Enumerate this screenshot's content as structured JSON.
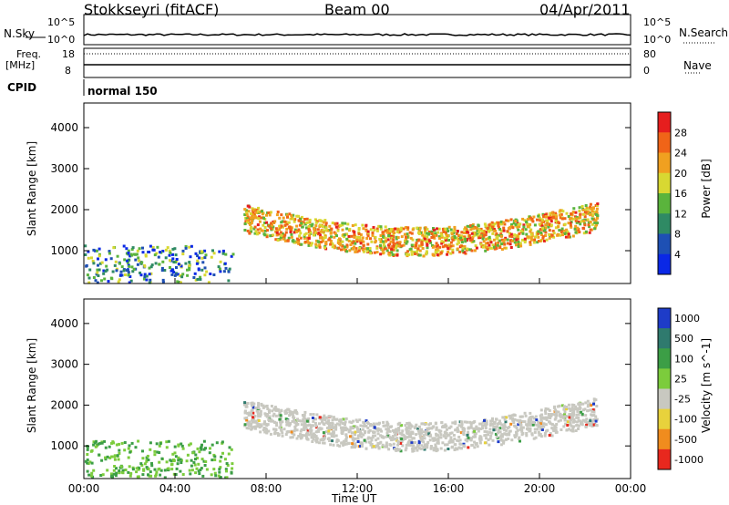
{
  "header": {
    "station": "Stokkseyri (fitACF)",
    "beam": "Beam 00",
    "date": "04/Apr/2011"
  },
  "top_panels": {
    "nsky_label": "N.Sky",
    "nsky_ticks": [
      "10^5",
      "10^0"
    ],
    "nsearch_label": "N.Search",
    "nsearch_ticks": [
      "10^5",
      "10^0"
    ],
    "freq_label": "Freq.",
    "freq_unit": "[MHz]",
    "freq_ticks": [
      "18",
      "8"
    ],
    "nave_label": "Nave",
    "nave_ticks": [
      "80",
      "0"
    ],
    "cpid_label": "CPID",
    "cpid_value": "normal 150"
  },
  "chart_data": [
    {
      "type": "heatmap",
      "name": "power",
      "ylabel": "Slant Range [km]",
      "xlabel": "",
      "ylim": [
        200,
        4600
      ],
      "yticks": [
        "1000",
        "2000",
        "3000",
        "4000"
      ],
      "colorbar_label": "Power [dB]",
      "colorbar_ticks": [
        "4",
        "8",
        "12",
        "16",
        "20",
        "24",
        "28"
      ],
      "colorbar_colors": [
        "#0a28e6",
        "#1e50b4",
        "#2f8a64",
        "#5ab43c",
        "#d8d832",
        "#f0a020",
        "#f06418",
        "#e61e1e"
      ]
    },
    {
      "type": "heatmap",
      "name": "velocity",
      "ylabel": "Slant Range [km]",
      "xlabel": "Time UT",
      "ylim": [
        200,
        4600
      ],
      "yticks": [
        "1000",
        "2000",
        "3000",
        "4000"
      ],
      "xticks": [
        "00:00",
        "04:00",
        "08:00",
        "12:00",
        "16:00",
        "20:00",
        "00:00"
      ],
      "colorbar_label": "Velocity [m s^-1]",
      "colorbar_ticks": [
        "1000",
        "500",
        "100",
        "25",
        "-25",
        "-100",
        "-500",
        "-1000"
      ],
      "colorbar_colors": [
        "#1e3cc8",
        "#2f7a6e",
        "#3c9e46",
        "#7ccc3c",
        "#c8c8c0",
        "#e8d23c",
        "#f08c1e",
        "#e8281e"
      ]
    }
  ]
}
